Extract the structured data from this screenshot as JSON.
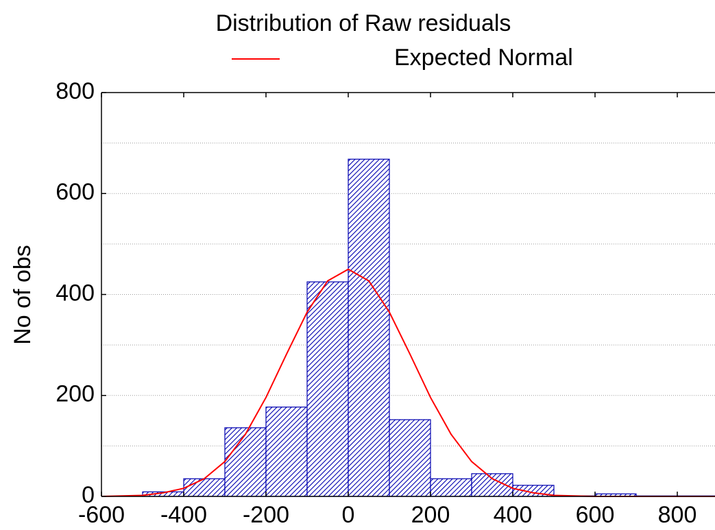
{
  "chart_data": {
    "type": "histogram",
    "title": "Distribution of Raw residuals",
    "ylabel": "No of obs",
    "bins": [
      -500,
      -400,
      -300,
      -200,
      -100,
      0,
      100,
      200,
      300,
      400,
      500,
      600,
      700,
      800,
      900
    ],
    "values": [
      9,
      35,
      136,
      177,
      425,
      668,
      152,
      35,
      45,
      22,
      1,
      5,
      1,
      1
    ],
    "color": "#0000b0",
    "curve": {
      "name": "Expected Normal",
      "color": "#ff0000",
      "x": [
        -600,
        -550,
        -500,
        -450,
        -400,
        -350,
        -300,
        -250,
        -200,
        -150,
        -100,
        -50,
        0,
        50,
        100,
        150,
        200,
        250,
        300,
        350,
        400,
        450,
        500,
        550,
        600,
        700,
        800,
        900
      ],
      "values": [
        0,
        1,
        2,
        7,
        16,
        35,
        69,
        123,
        196,
        282,
        365,
        427,
        450,
        427,
        365,
        282,
        196,
        123,
        69,
        35,
        16,
        7,
        2,
        1,
        0,
        0,
        0,
        0
      ]
    },
    "xlim": [
      -600,
      900
    ],
    "ylim": [
      0,
      800
    ],
    "xticks": [
      -600,
      -400,
      -200,
      0,
      200,
      400,
      600,
      800
    ],
    "yticks": [
      0,
      200,
      400,
      600,
      800
    ],
    "ygrid_minor": [
      100,
      300,
      500,
      700
    ],
    "grid": true
  }
}
